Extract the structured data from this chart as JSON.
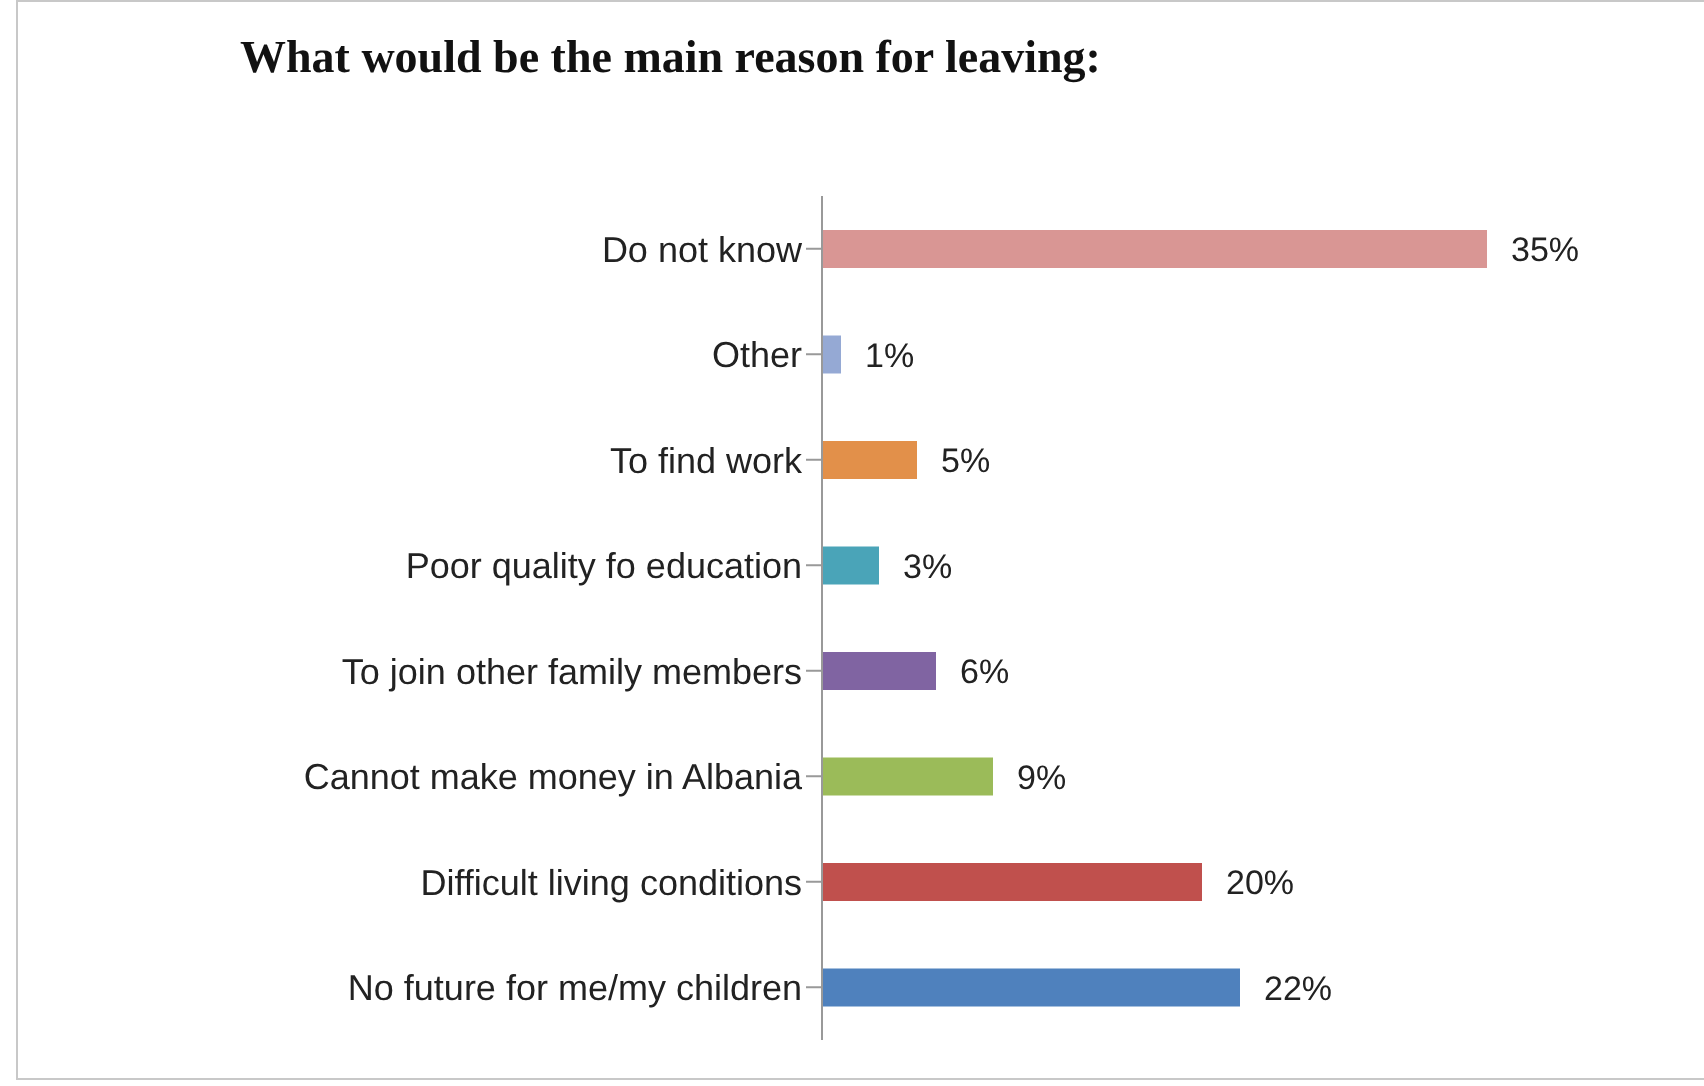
{
  "chart_data": {
    "type": "bar",
    "orientation": "horizontal",
    "title": "What would be the main reason for leaving:",
    "categories": [
      "Do not know",
      "Other",
      "To find work",
      "Poor quality fo education",
      "To join other family members",
      "Cannot make money in Albania",
      "Difficult living conditions",
      "No future for me/my children"
    ],
    "values": [
      35,
      1,
      5,
      3,
      6,
      9,
      20,
      22
    ],
    "value_labels": [
      "35%",
      "1%",
      "5%",
      "3%",
      "6%",
      "9%",
      "20%",
      "22%"
    ],
    "colors": [
      "#d99694",
      "#95a9d4",
      "#e2904a",
      "#4aa4b8",
      "#8064a2",
      "#9bbb59",
      "#c0504d",
      "#4f81bd"
    ],
    "grid": false,
    "legend": false
  }
}
